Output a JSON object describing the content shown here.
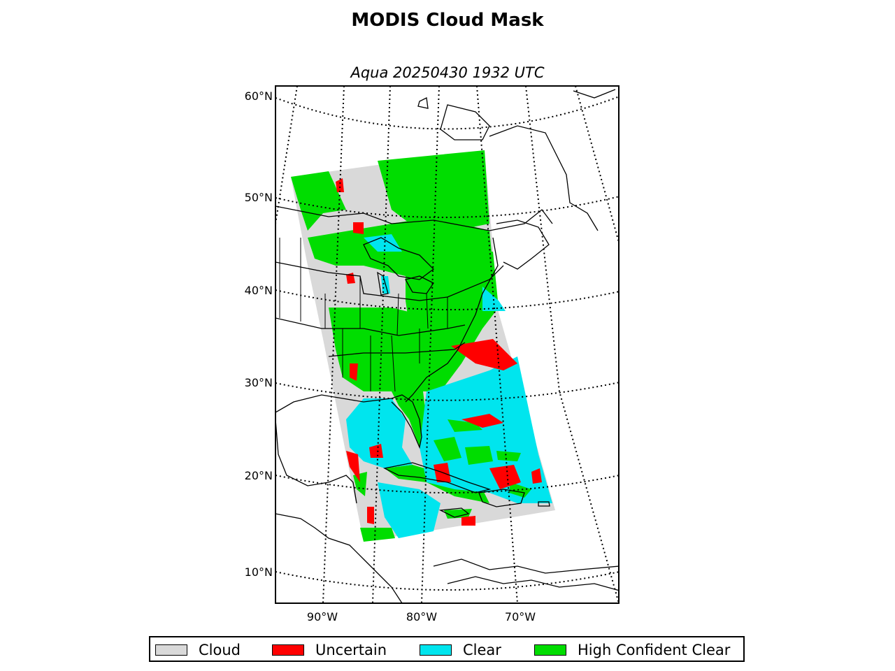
{
  "title": "MODIS Cloud Mask",
  "subtitle": "Aqua 20250430 1932 UTC",
  "lat_labels": [
    "60°N",
    "50°N",
    "40°N",
    "30°N",
    "20°N",
    "10°N"
  ],
  "lon_labels": [
    "90°W",
    "80°W",
    "70°W"
  ],
  "legend": [
    {
      "label": "Cloud",
      "color": "#d9d9d9"
    },
    {
      "label": "Uncertain",
      "color": "#ff0000"
    },
    {
      "label": "Clear",
      "color": "#00e5ee"
    },
    {
      "label": "High Confident Clear",
      "color": "#00dd00"
    }
  ]
}
